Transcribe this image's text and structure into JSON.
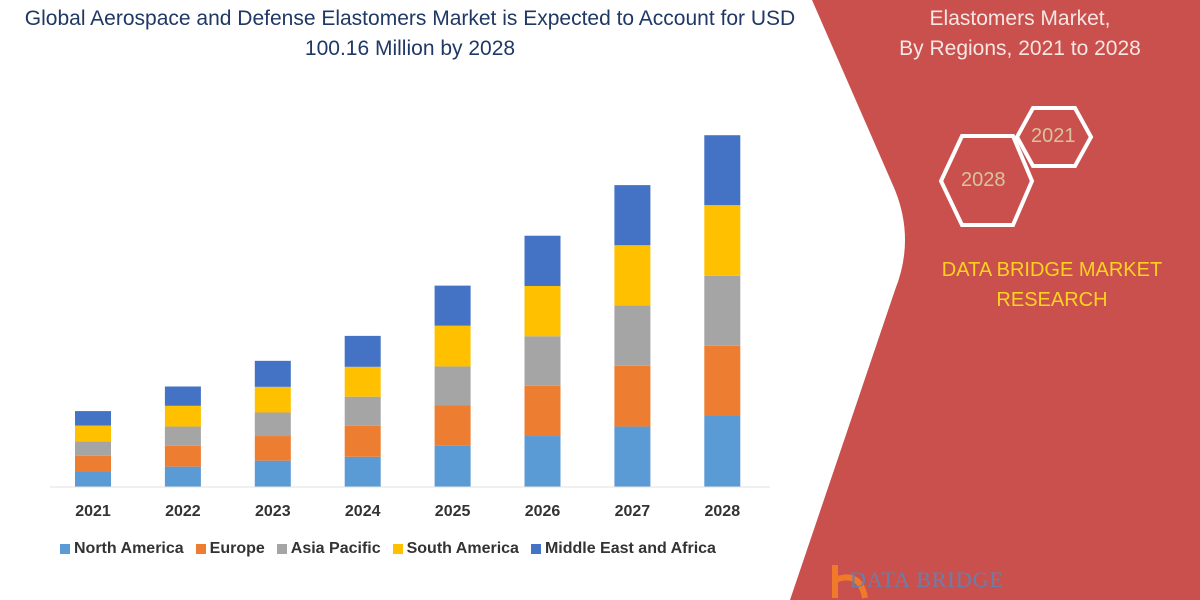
{
  "header": {
    "title": "Global Aerospace and Defense Elastomers Market is Expected to Account for USD 100.16 Million by 2028",
    "right_title_line1": "Elastomers Market,",
    "right_title_line2": "By Regions, 2021 to 2028",
    "hex_start": "2021",
    "hex_end": "2028",
    "brand": "DATA BRIDGE MARKET RESEARCH",
    "logo_text": "DATA BRIDGE"
  },
  "colors": {
    "panel": "#c9504d",
    "title": "#1f3864",
    "brand": "#ffd21f"
  },
  "chart_data": {
    "type": "bar",
    "stacked": true,
    "categories": [
      "2021",
      "2022",
      "2023",
      "2024",
      "2025",
      "2026",
      "2027",
      "2028"
    ],
    "series": [
      {
        "name": "North America",
        "color": "#5b9bd5",
        "values": [
          4.4,
          5.8,
          7.5,
          8.6,
          11.7,
          14.5,
          17.2,
          20.2
        ]
      },
      {
        "name": "Europe",
        "color": "#ed7d31",
        "values": [
          4.5,
          5.9,
          7.0,
          8.8,
          11.5,
          14.3,
          17.3,
          20.0
        ]
      },
      {
        "name": "Asia Pacific",
        "color": "#a5a5a5",
        "values": [
          4.1,
          5.5,
          6.7,
          8.3,
          11.1,
          14.1,
          17.2,
          19.9
        ]
      },
      {
        "name": "South America",
        "color": "#ffc000",
        "values": [
          4.5,
          5.9,
          7.3,
          8.5,
          11.6,
          14.3,
          17.1,
          20.1
        ]
      },
      {
        "name": "Middle East and Africa",
        "color": "#4472c4",
        "values": [
          4.1,
          5.5,
          7.4,
          8.8,
          11.4,
          14.3,
          17.1,
          19.9
        ]
      }
    ],
    "title": "",
    "xlabel": "",
    "ylabel": "",
    "ylim": [
      0,
      100.16
    ],
    "grid": false,
    "legend": "bottom"
  }
}
